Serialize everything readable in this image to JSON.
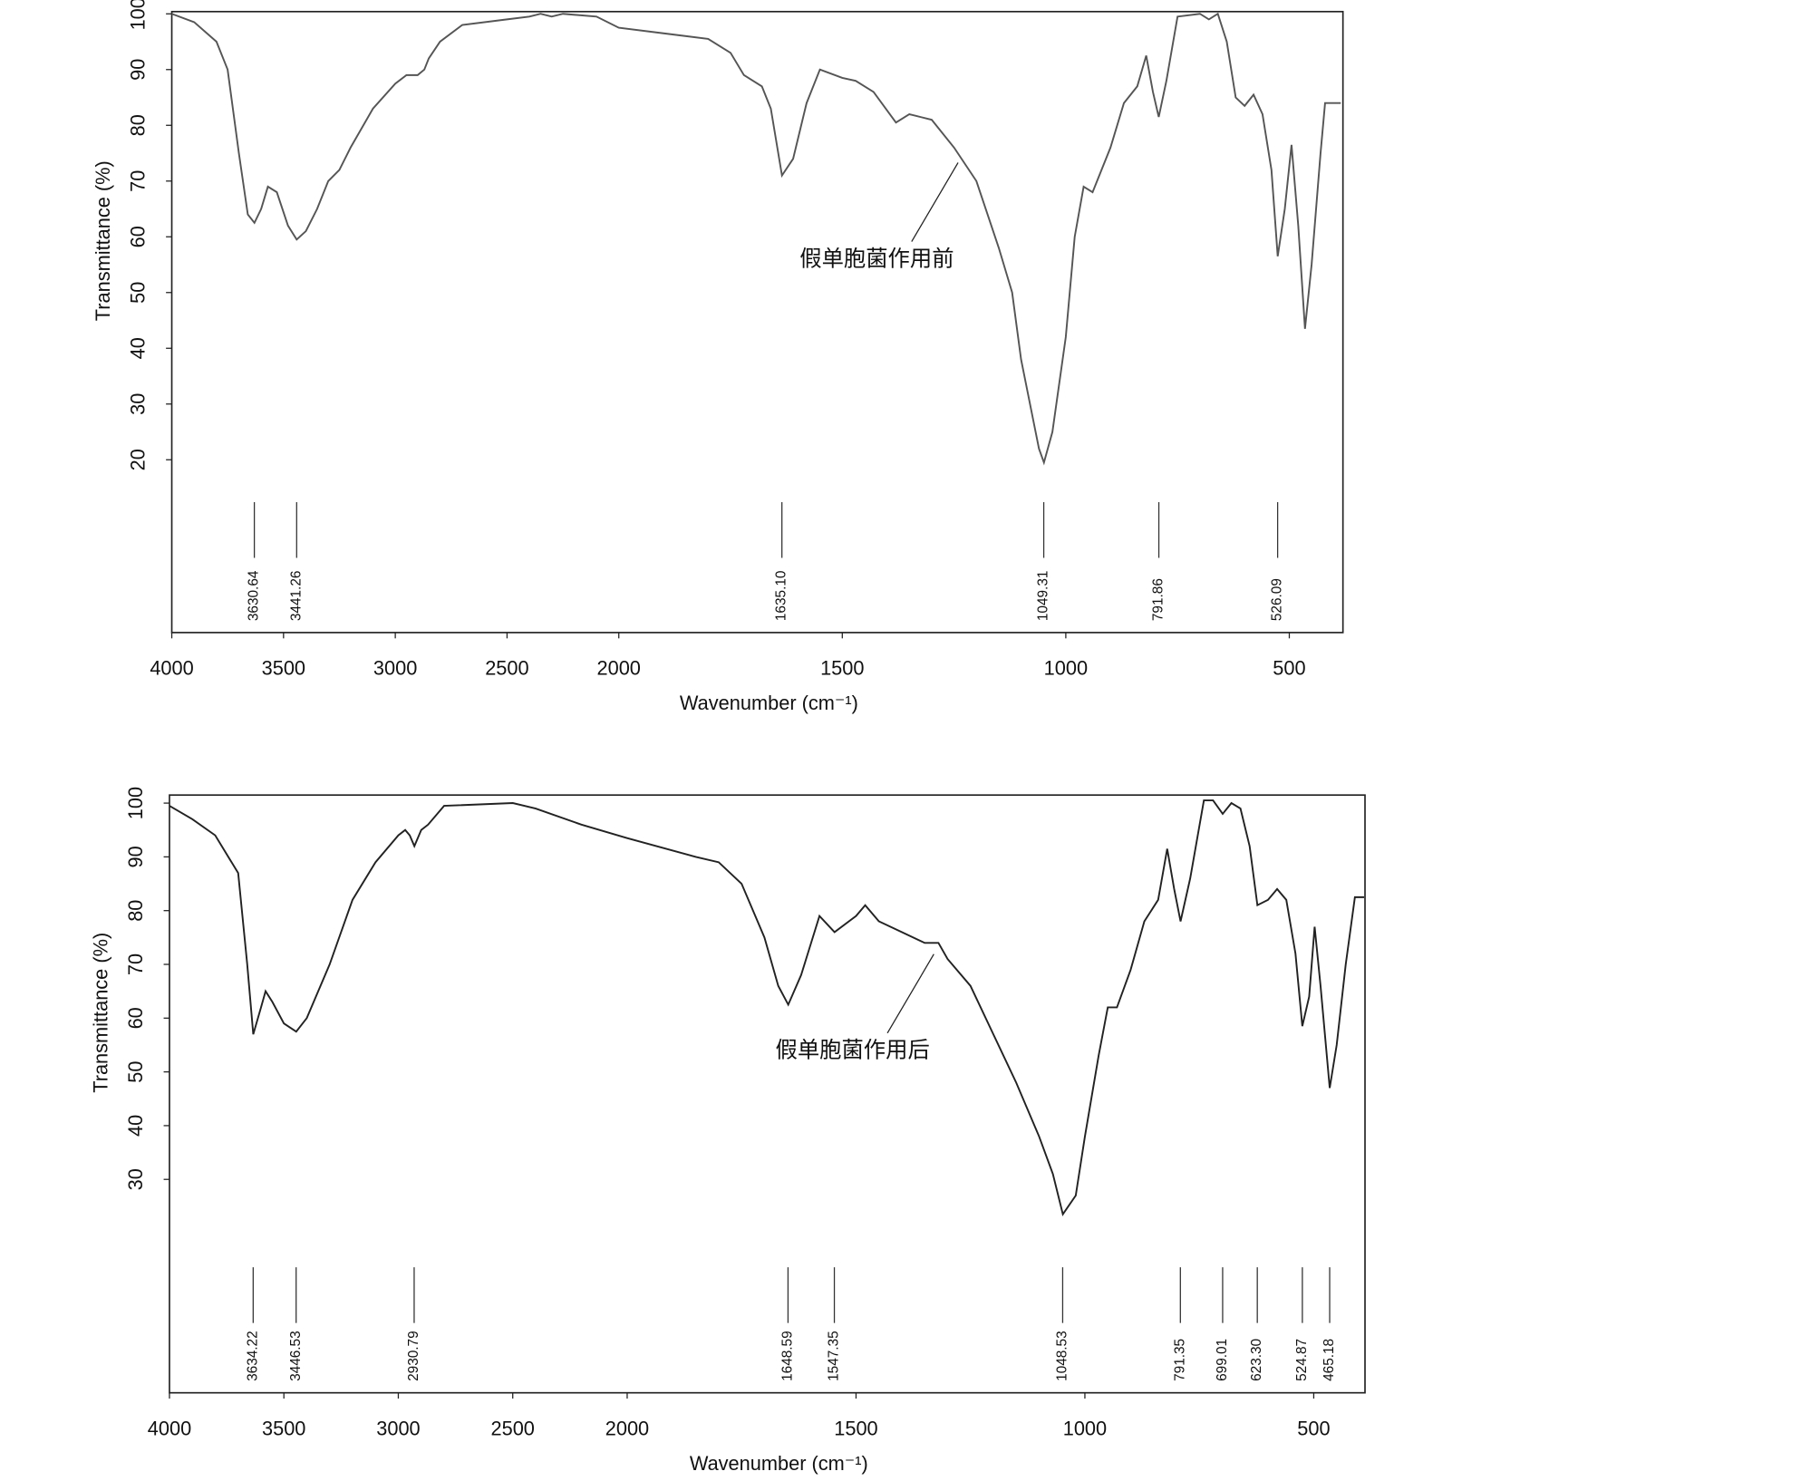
{
  "chart_data": [
    {
      "type": "line",
      "xlabel": "Wavenumber (cm⁻¹)",
      "ylabel": "Transmittance (%)",
      "xlim": [
        4000,
        380
      ],
      "xscale": "break",
      "xbreak": 2000,
      "xticks": [
        4000,
        3500,
        3000,
        2500,
        2000,
        1500,
        1000,
        500
      ],
      "ylim": [
        -11,
        100.4
      ],
      "yticks": [
        20,
        30,
        40,
        50,
        60,
        70,
        80,
        90,
        100
      ],
      "color": "#555555",
      "x": [
        4000,
        3900,
        3800,
        3750,
        3700,
        3660,
        3630,
        3600,
        3570,
        3530,
        3480,
        3441,
        3400,
        3350,
        3300,
        3250,
        3200,
        3100,
        3000,
        2950,
        2900,
        2870,
        2850,
        2800,
        2700,
        2500,
        2400,
        2350,
        2300,
        2250,
        2100,
        2000,
        1900,
        1800,
        1750,
        1720,
        1680,
        1660,
        1635,
        1610,
        1580,
        1550,
        1500,
        1470,
        1430,
        1380,
        1350,
        1300,
        1250,
        1200,
        1150,
        1120,
        1100,
        1080,
        1060,
        1049,
        1030,
        1000,
        980,
        960,
        940,
        920,
        900,
        870,
        840,
        820,
        805,
        792,
        775,
        750,
        700,
        680,
        660,
        640,
        620,
        600,
        580,
        560,
        540,
        526,
        510,
        495,
        480,
        465,
        450,
        430,
        420,
        385
      ],
      "values": [
        100,
        98.5,
        95,
        90,
        75,
        64,
        62.5,
        65,
        69,
        68,
        62,
        59.5,
        61,
        65,
        70,
        72,
        76,
        83,
        87.5,
        89,
        89,
        90,
        92,
        95,
        98,
        99,
        99.5,
        100,
        99.5,
        100,
        99.5,
        97.5,
        96.5,
        95.5,
        93,
        89,
        87,
        83,
        71,
        74,
        84,
        90,
        88.5,
        88,
        86,
        80.5,
        82,
        81,
        76,
        70,
        58,
        50,
        38,
        30,
        22,
        19.5,
        25,
        42,
        60,
        69,
        68,
        72,
        76,
        84,
        87,
        92.5,
        86,
        81.5,
        88,
        99.5,
        100,
        99,
        100,
        95,
        85,
        83.5,
        85.5,
        82,
        72,
        56.5,
        65,
        76.5,
        62,
        43.5,
        55,
        75,
        84,
        84
      ],
      "peaks": [
        3630.64,
        3441.26,
        {
          "value": 1635.1,
          "label": "1635.10"
        },
        1049.31,
        791.86,
        526.09
      ],
      "annotation": {
        "text": "假单胞菌作用前",
        "x": 1241,
        "y": 73.3
      }
    },
    {
      "type": "line",
      "xlabel": "Wavenumber (cm⁻¹)",
      "ylabel": "Transmittance (%)",
      "xlim": [
        4000,
        388
      ],
      "xscale": "break",
      "xbreak": 2000,
      "xticks": [
        4000,
        3500,
        3000,
        2500,
        2000,
        1500,
        1000,
        500
      ],
      "ylim": [
        -9.7,
        101.5
      ],
      "yticks": [
        30,
        40,
        50,
        60,
        70,
        80,
        90,
        100
      ],
      "color": "#222222",
      "x": [
        4000,
        3900,
        3800,
        3700,
        3660,
        3634,
        3600,
        3580,
        3550,
        3500,
        3446,
        3400,
        3300,
        3200,
        3100,
        3000,
        2970,
        2950,
        2930,
        2900,
        2870,
        2800,
        2500,
        2400,
        2200,
        2000,
        1850,
        1800,
        1750,
        1700,
        1670,
        1648,
        1620,
        1580,
        1547,
        1500,
        1480,
        1450,
        1400,
        1350,
        1320,
        1300,
        1250,
        1200,
        1150,
        1100,
        1070,
        1048,
        1020,
        1000,
        970,
        950,
        930,
        900,
        870,
        840,
        820,
        805,
        791,
        770,
        740,
        720,
        699,
        680,
        660,
        640,
        623,
        600,
        580,
        560,
        540,
        525,
        510,
        498,
        485,
        465,
        450,
        430,
        410,
        390
      ],
      "values": [
        99.5,
        97,
        94,
        87,
        70,
        57,
        62,
        65,
        63,
        59,
        57.5,
        60,
        70,
        82,
        89,
        94,
        95,
        94,
        92,
        95,
        96,
        99.5,
        100,
        99,
        96,
        93.5,
        90,
        89,
        85,
        75,
        66,
        62.5,
        68,
        79,
        76,
        79,
        81,
        78,
        76,
        74,
        74,
        71,
        66,
        57,
        48,
        38,
        31,
        23.5,
        27,
        38,
        53,
        62,
        62,
        69,
        78,
        82,
        91.5,
        84,
        78,
        86,
        100.5,
        100.5,
        98,
        100,
        99,
        92,
        81,
        82,
        84,
        82,
        72,
        58.5,
        64,
        77,
        66,
        47,
        55,
        70,
        82.5,
        82.5
      ],
      "peaks": [
        3634.22,
        3446.53,
        2930.79,
        1648.59,
        1547.35,
        1048.53,
        791.35,
        699.01,
        {
          "value": 623.3,
          "label": "623.30"
        },
        524.87,
        465.18
      ],
      "annotation": {
        "text": "假单胞菌作用后",
        "x": 1330,
        "y": 71.9
      }
    }
  ]
}
